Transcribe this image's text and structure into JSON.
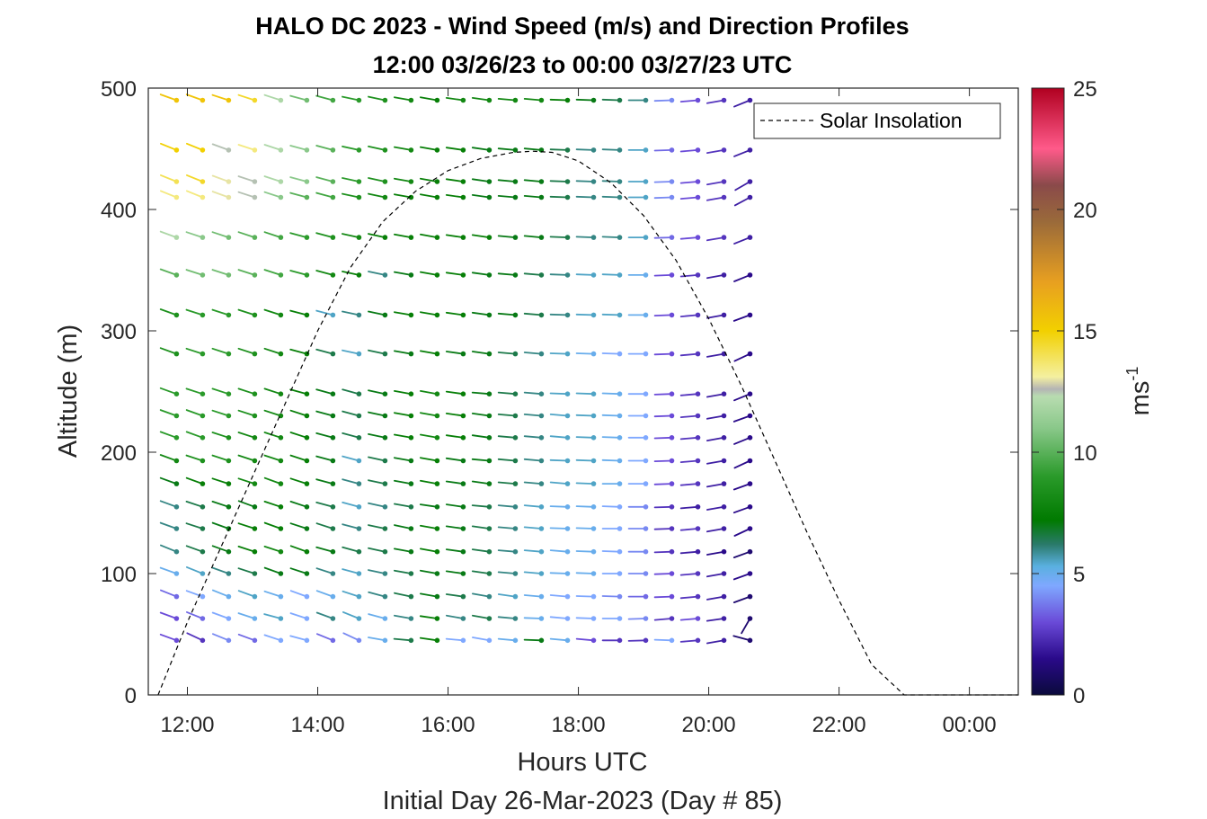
{
  "chart_data": {
    "type": "quiver",
    "title": "HALO DC 2023 - Wind Speed (m/s) and Direction Profiles",
    "subtitle": "12:00 03/26/23 to 00:00 03/27/23  UTC",
    "xlabel": "Hours UTC",
    "footer": "Initial Day 26-Mar-2023 (Day # 85)",
    "ylabel": "Altitude (m)",
    "xlim": [
      11.4,
      24.75
    ],
    "ylim": [
      0,
      500
    ],
    "x_ticks": [
      {
        "value": 12,
        "label": "12:00"
      },
      {
        "value": 14,
        "label": "14:00"
      },
      {
        "value": 16,
        "label": "16:00"
      },
      {
        "value": 18,
        "label": "18:00"
      },
      {
        "value": 20,
        "label": "20:00"
      },
      {
        "value": 22,
        "label": "22:00"
      },
      {
        "value": 24,
        "label": "00:00"
      }
    ],
    "y_ticks": [
      {
        "value": 0,
        "label": "0"
      },
      {
        "value": 100,
        "label": "100"
      },
      {
        "value": 200,
        "label": "200"
      },
      {
        "value": 300,
        "label": "300"
      },
      {
        "value": 400,
        "label": "400"
      },
      {
        "value": 500,
        "label": "500"
      }
    ],
    "colorbar": {
      "label": "ms",
      "label_superscript": "-1",
      "range": [
        0,
        25
      ],
      "ticks": [
        {
          "value": 0,
          "label": "0"
        },
        {
          "value": 5,
          "label": "5"
        },
        {
          "value": 10,
          "label": "10"
        },
        {
          "value": 15,
          "label": "15"
        },
        {
          "value": 20,
          "label": "20"
        },
        {
          "value": 25,
          "label": "25"
        }
      ],
      "stops": [
        {
          "v": 0,
          "c": "#0a0a3c"
        },
        {
          "v": 1.5,
          "c": "#2a0a8a"
        },
        {
          "v": 3,
          "c": "#6a4ad8"
        },
        {
          "v": 4.5,
          "c": "#7fa8ff"
        },
        {
          "v": 5.3,
          "c": "#5ab0e0"
        },
        {
          "v": 6.2,
          "c": "#2a7a6a"
        },
        {
          "v": 7.2,
          "c": "#007a00"
        },
        {
          "v": 9,
          "c": "#2a9a2a"
        },
        {
          "v": 11,
          "c": "#8ac88a"
        },
        {
          "v": 12.3,
          "c": "#b8dcb0"
        },
        {
          "v": 12.6,
          "c": "#b4b4b4"
        },
        {
          "v": 13.1,
          "c": "#f4f0a0"
        },
        {
          "v": 15,
          "c": "#f2d000"
        },
        {
          "v": 17,
          "c": "#e8a020"
        },
        {
          "v": 19.5,
          "c": "#9a6a3a"
        },
        {
          "v": 21,
          "c": "#8a4a4a"
        },
        {
          "v": 22.5,
          "c": "#ff5a8a"
        },
        {
          "v": 25,
          "c": "#b00020"
        }
      ]
    },
    "legend": {
      "label": "Solar Insolation",
      "position": "top-right"
    },
    "solar_insolation": {
      "x": [
        11.55,
        12.0,
        12.5,
        13.0,
        13.5,
        14.0,
        14.5,
        15.0,
        15.5,
        16.0,
        16.5,
        17.0,
        17.3,
        17.6,
        18.0,
        18.5,
        19.0,
        19.5,
        20.0,
        20.5,
        21.0,
        21.5,
        22.0,
        22.5,
        23.0,
        24.75
      ],
      "y": [
        0,
        60,
        120,
        180,
        240,
        300,
        352,
        390,
        415,
        432,
        442,
        447,
        448,
        447,
        440,
        422,
        395,
        358,
        310,
        255,
        195,
        135,
        78,
        25,
        0,
        0
      ]
    },
    "wind_profile": {
      "times_start": 11.833,
      "times_step": 0.4,
      "time_count": 23,
      "altitudes": [
        45,
        63,
        81,
        100,
        118,
        137,
        155,
        174,
        193,
        212,
        230,
        248,
        281,
        313,
        346,
        377,
        410,
        423,
        449,
        490
      ],
      "arrow_length_hours": 0.26,
      "direction_deg": [
        [
          70,
          65,
          68,
          70,
          72,
          75,
          68,
          65,
          80,
          85,
          82,
          85,
          80,
          85,
          88,
          85,
          85,
          90,
          92,
          88,
          95,
          100,
          75
        ],
        [
          70,
          68,
          70,
          72,
          75,
          72,
          70,
          68,
          75,
          80,
          82,
          80,
          80,
          85,
          88,
          85,
          88,
          90,
          92,
          95,
          95,
          98,
          150
        ],
        [
          68,
          70,
          68,
          70,
          72,
          70,
          70,
          72,
          75,
          78,
          80,
          82,
          80,
          82,
          85,
          85,
          88,
          88,
          90,
          92,
          95,
          100,
          110
        ],
        [
          70,
          68,
          70,
          72,
          70,
          72,
          72,
          75,
          78,
          80,
          80,
          82,
          82,
          85,
          85,
          88,
          88,
          90,
          90,
          92,
          95,
          100,
          110
        ],
        [
          68,
          70,
          70,
          72,
          72,
          70,
          75,
          75,
          78,
          80,
          80,
          82,
          82,
          85,
          85,
          85,
          88,
          88,
          90,
          92,
          95,
          100,
          110
        ],
        [
          70,
          72,
          70,
          72,
          70,
          72,
          72,
          75,
          78,
          78,
          80,
          82,
          82,
          85,
          85,
          88,
          88,
          90,
          90,
          92,
          95,
          100,
          115
        ],
        [
          70,
          72,
          72,
          70,
          72,
          72,
          75,
          75,
          78,
          80,
          82,
          82,
          85,
          85,
          85,
          88,
          88,
          88,
          90,
          92,
          95,
          100,
          110
        ],
        [
          70,
          70,
          72,
          72,
          70,
          72,
          75,
          75,
          78,
          80,
          80,
          82,
          82,
          85,
          85,
          85,
          88,
          90,
          90,
          92,
          95,
          100,
          110
        ],
        [
          70,
          72,
          72,
          72,
          72,
          72,
          75,
          75,
          78,
          80,
          80,
          82,
          85,
          85,
          85,
          88,
          88,
          88,
          90,
          92,
          95,
          100,
          115
        ],
        [
          70,
          70,
          72,
          72,
          72,
          72,
          75,
          75,
          78,
          80,
          80,
          82,
          82,
          85,
          85,
          85,
          88,
          88,
          90,
          92,
          95,
          100,
          112
        ],
        [
          70,
          70,
          72,
          72,
          72,
          72,
          75,
          75,
          78,
          80,
          80,
          82,
          82,
          85,
          85,
          85,
          88,
          88,
          90,
          92,
          95,
          100,
          110
        ],
        [
          70,
          72,
          72,
          72,
          72,
          75,
          75,
          75,
          78,
          80,
          80,
          82,
          85,
          85,
          85,
          88,
          88,
          88,
          90,
          92,
          95,
          100,
          112
        ],
        [
          70,
          72,
          72,
          72,
          72,
          75,
          75,
          78,
          78,
          80,
          80,
          82,
          82,
          85,
          85,
          88,
          88,
          88,
          90,
          92,
          95,
          100,
          115
        ],
        [
          70,
          72,
          72,
          72,
          72,
          75,
          75,
          78,
          78,
          80,
          80,
          82,
          82,
          85,
          85,
          88,
          88,
          88,
          90,
          92,
          95,
          100,
          110
        ],
        [
          70,
          72,
          72,
          72,
          72,
          75,
          75,
          78,
          78,
          80,
          80,
          82,
          82,
          85,
          85,
          88,
          88,
          88,
          90,
          92,
          95,
          100,
          112
        ],
        [
          70,
          72,
          72,
          72,
          72,
          75,
          75,
          78,
          78,
          80,
          80,
          82,
          82,
          85,
          85,
          88,
          88,
          88,
          90,
          92,
          95,
          100,
          112
        ],
        [
          68,
          68,
          70,
          72,
          72,
          75,
          75,
          78,
          78,
          80,
          80,
          82,
          82,
          85,
          85,
          88,
          88,
          88,
          90,
          92,
          95,
          100,
          118
        ],
        [
          68,
          68,
          70,
          72,
          72,
          75,
          75,
          78,
          78,
          80,
          80,
          82,
          82,
          85,
          85,
          88,
          88,
          88,
          90,
          92,
          95,
          100,
          120
        ],
        [
          68,
          68,
          70,
          72,
          72,
          75,
          75,
          78,
          78,
          80,
          80,
          82,
          82,
          85,
          85,
          88,
          88,
          88,
          90,
          92,
          95,
          100,
          112
        ],
        [
          70,
          70,
          72,
          72,
          72,
          75,
          75,
          78,
          78,
          80,
          80,
          82,
          82,
          85,
          85,
          88,
          88,
          88,
          90,
          92,
          95,
          100,
          112
        ]
      ],
      "speed_ms": [
        [
          3,
          2.5,
          4,
          3.5,
          4.5,
          4.5,
          3.5,
          4,
          5,
          6.5,
          7.5,
          4.5,
          4.5,
          5,
          7,
          5,
          3,
          2.5,
          2.5,
          4.5,
          2.5,
          2,
          1
        ],
        [
          3,
          3.5,
          4.5,
          5,
          5.5,
          4.5,
          6,
          5.5,
          5,
          6,
          7.5,
          6,
          6.5,
          6,
          5,
          4.5,
          4.5,
          4.5,
          4,
          2.5,
          3,
          2,
          1
        ],
        [
          3.5,
          4.5,
          5,
          5.5,
          5,
          4.5,
          5,
          5.5,
          6,
          6.5,
          7,
          6.5,
          6,
          5.5,
          5,
          4.5,
          4.5,
          4,
          3.5,
          3,
          2.5,
          2,
          1
        ],
        [
          5,
          5.5,
          6,
          6.5,
          7,
          7,
          6,
          5.5,
          6,
          6.5,
          7,
          7,
          6.5,
          6,
          5.5,
          5,
          5,
          4.5,
          4,
          3,
          2.5,
          2,
          1.5
        ],
        [
          6,
          6.5,
          7,
          7.5,
          8,
          7.5,
          7,
          6.5,
          6.5,
          7,
          7.5,
          7,
          6.5,
          6,
          5.5,
          5,
          5,
          4.5,
          4,
          2.5,
          2,
          1.5,
          1
        ],
        [
          6,
          6.5,
          7,
          7.5,
          7.5,
          7,
          6.5,
          6,
          6.5,
          7,
          7.5,
          7,
          6.5,
          6,
          5.5,
          5,
          5,
          4.5,
          4,
          2.5,
          2.5,
          2,
          1.5
        ],
        [
          6,
          6.5,
          7,
          7,
          7.5,
          7,
          6.5,
          5.5,
          6,
          6.5,
          7,
          7,
          6.5,
          6,
          5.5,
          5,
          5,
          4.5,
          4,
          2.5,
          2,
          2,
          1.5
        ],
        [
          7,
          7.5,
          7.5,
          8,
          8,
          7.5,
          7,
          6,
          6.5,
          7,
          7.5,
          7,
          7,
          6.5,
          6,
          5.5,
          5.5,
          5,
          4.5,
          3,
          2.5,
          2,
          1.5
        ],
        [
          8,
          8.5,
          8.5,
          8,
          8,
          7.5,
          7,
          5.5,
          6.5,
          7,
          7.5,
          7,
          7,
          6.5,
          6,
          5.5,
          5.5,
          5,
          4.5,
          3,
          2.5,
          2,
          1.5
        ],
        [
          9,
          9,
          8.5,
          8,
          8,
          7.5,
          7,
          6.5,
          7,
          7.5,
          8,
          7.5,
          7,
          6.5,
          6,
          5.5,
          5.5,
          5,
          4.5,
          3,
          2.5,
          2,
          1.5
        ],
        [
          9,
          9,
          9,
          8.5,
          8,
          7.5,
          7,
          6.5,
          7,
          7.5,
          8,
          7.5,
          7,
          6.5,
          6,
          5.5,
          5.5,
          5,
          4.5,
          3,
          2.5,
          2,
          1.5
        ],
        [
          9,
          9,
          9,
          8.5,
          8,
          7.5,
          7,
          6.5,
          7,
          7.5,
          8,
          7.5,
          7,
          6.5,
          6,
          5.5,
          5.5,
          5,
          4.5,
          3,
          2.5,
          2,
          1.5
        ],
        [
          8.5,
          9,
          9,
          8.5,
          8,
          7.5,
          6.5,
          5.5,
          6.5,
          7,
          7.5,
          7,
          7,
          6.5,
          6,
          5.5,
          5,
          4.5,
          4.5,
          3,
          2.5,
          2,
          1.5
        ],
        [
          8.5,
          9,
          9,
          8.5,
          8,
          7.5,
          5.5,
          6,
          7,
          7.5,
          7.5,
          7.5,
          7,
          7,
          6.5,
          6,
          5.5,
          5.5,
          5,
          3,
          2.5,
          2,
          1.5
        ],
        [
          10,
          10.5,
          10.5,
          10,
          9.5,
          9,
          8,
          7.5,
          6,
          7,
          7.5,
          7.5,
          7,
          7,
          6.5,
          6,
          5.5,
          5.5,
          5,
          3,
          2.5,
          2,
          1.5
        ],
        [
          12,
          11,
          10.5,
          10,
          9.5,
          9,
          8.5,
          8,
          7.5,
          7.5,
          7.5,
          7.5,
          7.5,
          7,
          7,
          6.5,
          6,
          6,
          5.5,
          3.5,
          3,
          2.5,
          2
        ],
        [
          13.5,
          13.5,
          13,
          12.5,
          11,
          10,
          9.5,
          8.5,
          8,
          7.5,
          7.5,
          7.5,
          7,
          7,
          7,
          6.5,
          6,
          6,
          5.5,
          4,
          3,
          2.5,
          2
        ],
        [
          14,
          14.5,
          13,
          12.5,
          12,
          11,
          10,
          9,
          8.5,
          8,
          7.5,
          7.5,
          7,
          7,
          7,
          6.5,
          6,
          6,
          5.5,
          4,
          3,
          2.5,
          2
        ],
        [
          15,
          15,
          12.5,
          13.5,
          12,
          11,
          10,
          9,
          8.5,
          8,
          7.5,
          7.5,
          7,
          7,
          7,
          6.5,
          6,
          6,
          5.5,
          3.5,
          3,
          2.5,
          2
        ],
        [
          15.5,
          15.5,
          15.5,
          14.5,
          12,
          10.5,
          9.5,
          9,
          8.5,
          8,
          7.5,
          8,
          8,
          8,
          8,
          7.5,
          7,
          6.5,
          6,
          4,
          3,
          2.5,
          2
        ]
      ]
    }
  }
}
